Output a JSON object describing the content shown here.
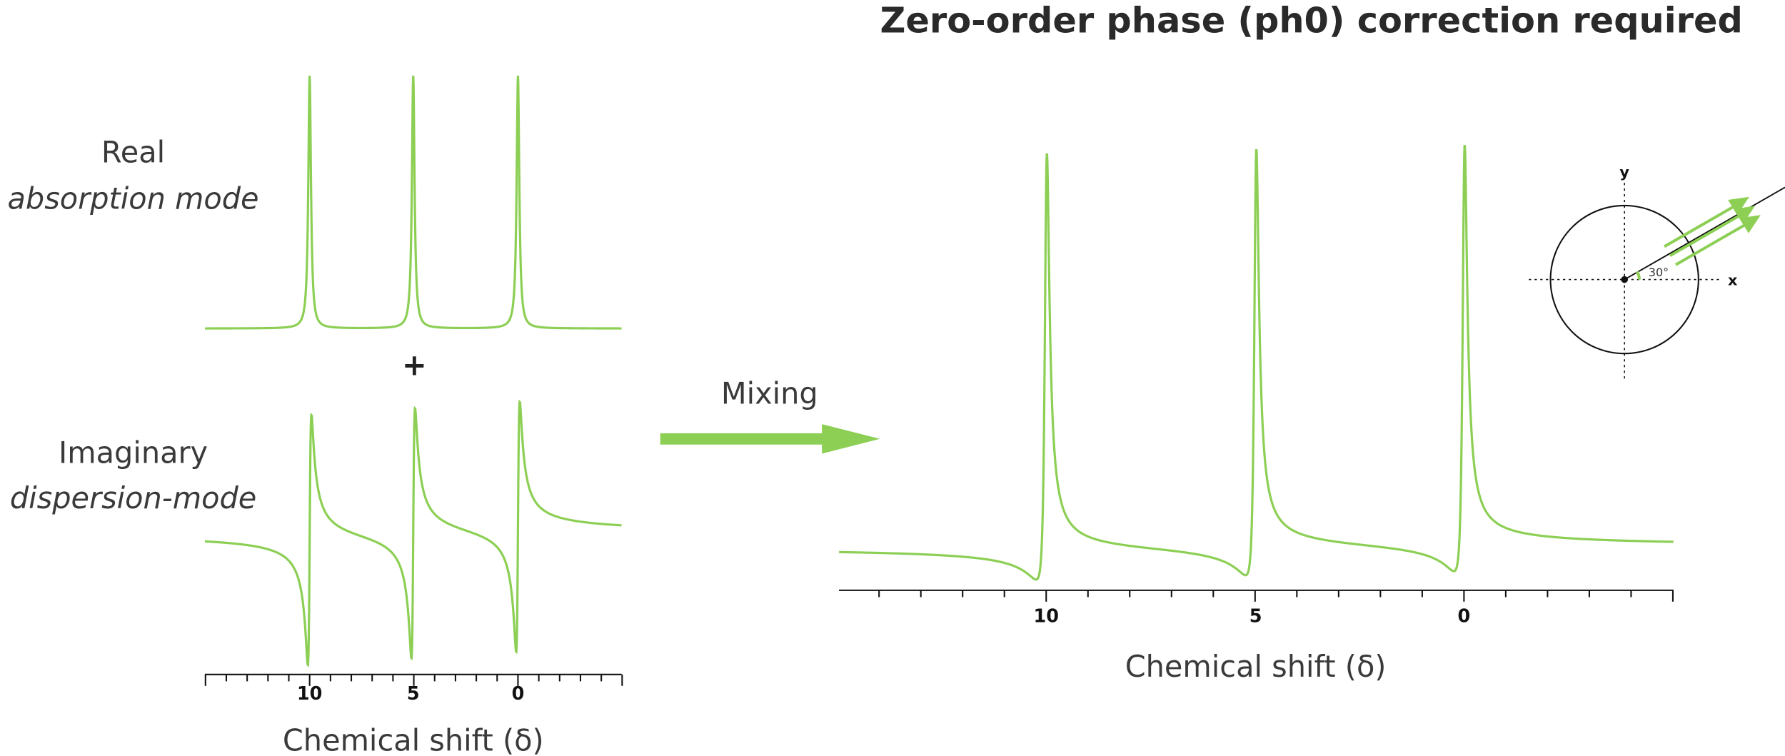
{
  "title": "Zero-order phase (ph0) correction required",
  "left_panel": {
    "real_label": {
      "line1": "Real",
      "line2": "absorption mode"
    },
    "plus": "+",
    "imaginary_label": {
      "line1": "Imaginary",
      "line2": "dispersion-mode"
    },
    "x_ticks": [
      "10",
      "5",
      "0"
    ],
    "x_axis_label": "Chemical shift (δ)"
  },
  "mixing_label": "Mixing",
  "right_panel": {
    "x_ticks": [
      "10",
      "5",
      "0"
    ],
    "x_axis_label": "Chemical shift (δ)",
    "phase_diagram": {
      "y_label": "y",
      "x_label": "x",
      "angle_label": "30°"
    }
  }
}
